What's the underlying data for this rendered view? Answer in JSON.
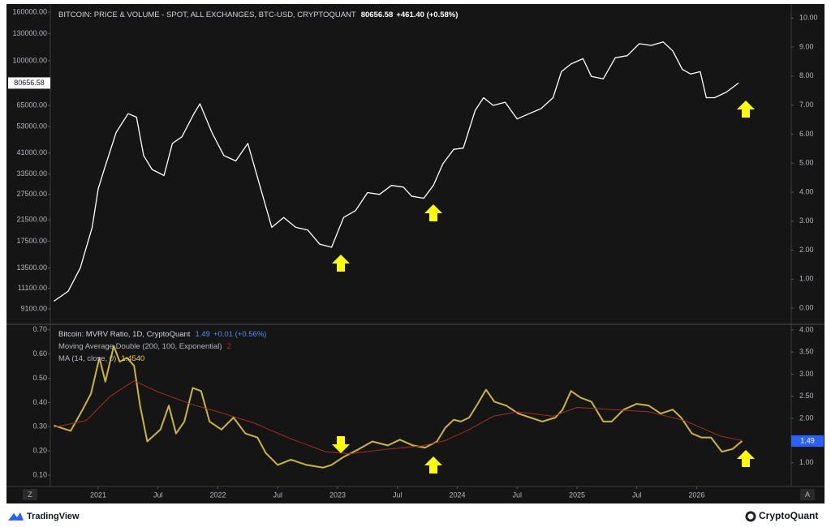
{
  "chart_data": [
    {
      "type": "line",
      "title": "BITCOIN: PRICE & VOLUME - SPOT, ALL EXCHANGES, BTC-USD, CRYPTOQUANT",
      "change": "+461.40 (+0.58%)",
      "log_scale": true,
      "xlim": [
        2020.6,
        2026.79
      ],
      "ylim": [
        7960,
        169000
      ],
      "yticks": [
        {
          "value": 160000,
          "label": "160000.00"
        },
        {
          "value": 130000,
          "label": "130000.00"
        },
        {
          "value": 100000,
          "label": "100000.00"
        },
        {
          "value": 65000,
          "label": "65000.00"
        },
        {
          "value": 53000,
          "label": "53000.00"
        },
        {
          "value": 41000,
          "label": "41000.00"
        },
        {
          "value": 33500,
          "label": "33500.00"
        },
        {
          "value": 27500,
          "label": "27500.00"
        },
        {
          "value": 21500,
          "label": "21500.00"
        },
        {
          "value": 17500,
          "label": "17500.00"
        },
        {
          "value": 13500,
          "label": "13500.00"
        },
        {
          "value": 11100,
          "label": "11100.00"
        },
        {
          "value": 9100,
          "label": "9100.00"
        }
      ],
      "y2lim": [
        -0.5,
        10.4
      ],
      "y2ticks": [
        {
          "value": 10,
          "label": "10.00"
        },
        {
          "value": 9,
          "label": "9.00"
        },
        {
          "value": 8,
          "label": "8.00"
        },
        {
          "value": 7,
          "label": "7.00"
        },
        {
          "value": 6,
          "label": "6.00"
        },
        {
          "value": 5,
          "label": "5.00"
        },
        {
          "value": 4,
          "label": "4.00"
        },
        {
          "value": 3,
          "label": "3.00"
        },
        {
          "value": 2,
          "label": "2.00"
        },
        {
          "value": 1,
          "label": "1.00"
        },
        {
          "value": 0,
          "label": "0.00"
        }
      ],
      "series": [
        {
          "color": "#ffffff",
          "x": [
            2020.63,
            2020.75,
            2020.85,
            2020.95,
            2021.0,
            2021.05,
            2021.15,
            2021.25,
            2021.32,
            2021.38,
            2021.45,
            2021.55,
            2021.62,
            2021.7,
            2021.8,
            2021.85,
            2021.95,
            2022.05,
            2022.15,
            2022.25,
            2022.35,
            2022.45,
            2022.55,
            2022.65,
            2022.75,
            2022.85,
            2022.95,
            2023.05,
            2023.15,
            2023.25,
            2023.35,
            2023.45,
            2023.55,
            2023.62,
            2023.72,
            2023.8,
            2023.88,
            2023.97,
            2024.05,
            2024.15,
            2024.22,
            2024.3,
            2024.4,
            2024.5,
            2024.6,
            2024.7,
            2024.8,
            2024.87,
            2024.95,
            2025.05,
            2025.12,
            2025.22,
            2025.32,
            2025.42,
            2025.52,
            2025.62,
            2025.72,
            2025.8,
            2025.88,
            2025.95,
            2026.03,
            2026.08,
            2026.15,
            2026.25,
            2026.35
          ],
          "values": [
            9800,
            10800,
            13500,
            20000,
            29000,
            35000,
            50000,
            60000,
            58000,
            40000,
            35000,
            33000,
            45000,
            48000,
            60000,
            66000,
            50000,
            40000,
            38000,
            45000,
            30000,
            20000,
            22000,
            20000,
            19500,
            17000,
            16500,
            22000,
            23500,
            28000,
            27500,
            30000,
            29500,
            27000,
            26500,
            30000,
            37000,
            42500,
            43000,
            62000,
            70000,
            65000,
            67000,
            57000,
            60000,
            63000,
            70000,
            90000,
            97000,
            102000,
            86000,
            84000,
            103000,
            105000,
            118000,
            116000,
            120000,
            110000,
            92000,
            88000,
            90000,
            70000,
            70000,
            74000,
            80656.58
          ]
        }
      ]
    },
    {
      "type": "line",
      "xlim": [
        2020.6,
        2026.79
      ],
      "xticks": [
        2021,
        {
          "value": 2021.5,
          "label": "Jul"
        },
        2022,
        {
          "value": 2022.5,
          "label": "Jul"
        },
        2023,
        {
          "value": 2023.5,
          "label": "Jul"
        },
        2024,
        {
          "value": 2024.5,
          "label": "Jul"
        },
        2025,
        {
          "value": 2025.5,
          "label": "Jul"
        },
        2026
      ],
      "ylim": [
        0.06,
        0.716
      ],
      "yticks": [
        {
          "value": 0.7,
          "label": "0.70"
        },
        {
          "value": 0.6,
          "label": "0.60"
        },
        {
          "value": 0.5,
          "label": "0.50"
        },
        {
          "value": 0.4,
          "label": "0.40"
        },
        {
          "value": 0.3,
          "label": "0.30"
        },
        {
          "value": 0.2,
          "label": "0.20"
        },
        {
          "value": 0.1,
          "label": "0.10"
        }
      ],
      "y2lim": [
        0.5,
        4.09
      ],
      "y2ticks": [
        {
          "value": 4,
          "label": "4.00"
        },
        {
          "value": 3.5,
          "label": "3.50"
        },
        {
          "value": 3,
          "label": "3.00"
        },
        {
          "value": 2.5,
          "label": "2.50"
        },
        {
          "value": 2,
          "label": "2.00"
        },
        {
          "value": 1.5,
          "label": "1.50"
        },
        {
          "value": 1,
          "label": "1.00"
        }
      ],
      "series": [
        {
          "name": "Bitcoin: MVRV Ratio, 1D, CryptoQuant",
          "color": "#c9b63a",
          "axis": "y2",
          "change": "+0.01 (+0.56%)",
          "x": [
            2020.63,
            2020.77,
            2020.87,
            2020.94,
            2021.01,
            2021.06,
            2021.13,
            2021.18,
            2021.24,
            2021.3,
            2021.35,
            2021.41,
            2021.52,
            2021.59,
            2021.65,
            2021.72,
            2021.79,
            2021.86,
            2021.93,
            2022.03,
            2022.13,
            2022.23,
            2022.33,
            2022.4,
            2022.5,
            2022.61,
            2022.74,
            2022.88,
            2022.95,
            2023.05,
            2023.18,
            2023.29,
            2023.42,
            2023.52,
            2023.63,
            2023.73,
            2023.83,
            2023.9,
            2023.97,
            2024.03,
            2024.1,
            2024.17,
            2024.24,
            2024.31,
            2024.41,
            2024.51,
            2024.61,
            2024.71,
            2024.82,
            2024.88,
            2024.95,
            2025.03,
            2025.12,
            2025.22,
            2025.29,
            2025.39,
            2025.5,
            2025.6,
            2025.7,
            2025.8,
            2025.87,
            2025.96,
            2026.04,
            2026.12,
            2026.21,
            2026.3,
            2026.38
          ],
          "values": [
            1.84,
            1.72,
            2.2,
            2.56,
            3.37,
            2.83,
            3.64,
            3.28,
            3.37,
            3.19,
            2.29,
            1.48,
            1.75,
            2.29,
            1.66,
            1.93,
            2.69,
            2.62,
            1.93,
            1.75,
            2.02,
            1.66,
            1.57,
            1.22,
            0.95,
            1.07,
            0.95,
            0.89,
            0.95,
            1.13,
            1.31,
            1.48,
            1.39,
            1.52,
            1.39,
            1.34,
            1.48,
            1.79,
            1.97,
            1.93,
            2.02,
            2.33,
            2.65,
            2.38,
            2.29,
            2.11,
            2.02,
            1.93,
            2.02,
            2.2,
            2.62,
            2.47,
            2.38,
            1.93,
            1.93,
            2.2,
            2.33,
            2.29,
            2.11,
            2.2,
            2.02,
            1.66,
            1.57,
            1.57,
            1.25,
            1.31,
            1.49
          ]
        },
        {
          "name": "Moving Average Double (200, 100, Exponential)",
          "color": "#a0301f",
          "axis": "y2",
          "legend_value": "2",
          "x": [
            2020.63,
            2020.9,
            2021.1,
            2021.3,
            2021.5,
            2021.8,
            2022.0,
            2022.3,
            2022.6,
            2022.9,
            2023.1,
            2023.4,
            2023.7,
            2023.9,
            2024.1,
            2024.3,
            2024.5,
            2024.8,
            2025.0,
            2025.3,
            2025.6,
            2025.9,
            2026.2,
            2026.38
          ],
          "values": [
            1.8,
            1.95,
            2.5,
            2.85,
            2.6,
            2.3,
            2.15,
            1.9,
            1.55,
            1.25,
            1.2,
            1.3,
            1.38,
            1.5,
            1.75,
            2.05,
            2.15,
            2.05,
            2.25,
            2.2,
            2.15,
            1.95,
            1.6,
            1.5
          ]
        }
      ],
      "legend_notes": [
        {
          "name": "MA (14, close, 0)",
          "value_text": "1.4540"
        }
      ]
    }
  ],
  "buttons": {
    "left": "Z",
    "right": "A"
  },
  "footer": {
    "left": "TradingView",
    "right": "CryptoQuant"
  }
}
